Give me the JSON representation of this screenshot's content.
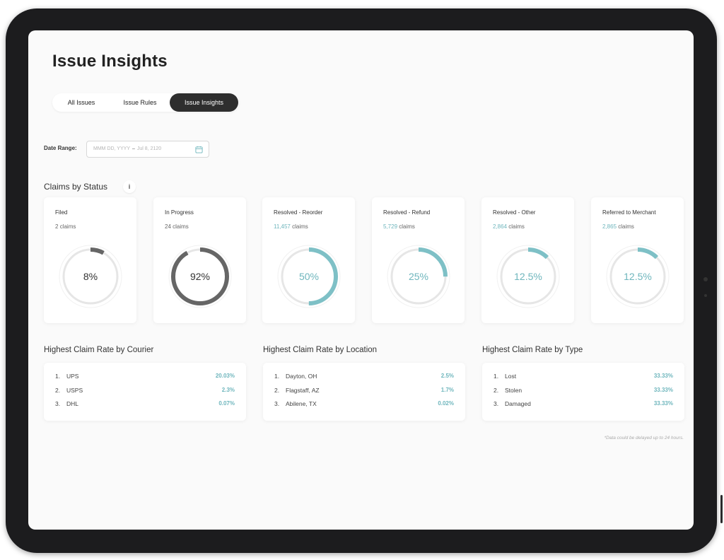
{
  "page": {
    "title": "Issue Insights"
  },
  "tabs": [
    {
      "label": "All Issues",
      "active": false
    },
    {
      "label": "Issue Rules",
      "active": false
    },
    {
      "label": "Issue Insights",
      "active": true
    }
  ],
  "date_range": {
    "label": "Date Range:",
    "start_placeholder": "MMM DD, YYYY",
    "separator": "–",
    "end_value": "Jul 8, 2120"
  },
  "claims_by_status": {
    "title": "Claims by Status",
    "info_label": "i",
    "cards": [
      {
        "title": "Filed",
        "count": "2",
        "unit": "claims",
        "percent_label": "8%",
        "fraction": 0.08,
        "color": "#666666"
      },
      {
        "title": "In Progress",
        "count": "24",
        "unit": "claims",
        "percent_label": "92%",
        "fraction": 0.92,
        "color": "#666666"
      },
      {
        "title": "Resolved - Reorder",
        "count": "11,457",
        "unit": "claims",
        "percent_label": "50%",
        "fraction": 0.5,
        "color": "#7ec0c6"
      },
      {
        "title": "Resolved - Refund",
        "count": "5,729",
        "unit": "claims",
        "percent_label": "25%",
        "fraction": 0.25,
        "color": "#7ec0c6"
      },
      {
        "title": "Resolved - Other",
        "count": "2,864",
        "unit": "claims",
        "percent_label": "12.5%",
        "fraction": 0.125,
        "color": "#7ec0c6"
      },
      {
        "title": "Referred to Merchant",
        "count": "2,865",
        "unit": "claims",
        "percent_label": "12.5%",
        "fraction": 0.125,
        "color": "#7ec0c6"
      }
    ]
  },
  "rates": [
    {
      "title": "Highest Claim Rate by Courier",
      "rows": [
        {
          "index": "1.",
          "name": "UPS",
          "value": "20.03%"
        },
        {
          "index": "2.",
          "name": "USPS",
          "value": "2.3%"
        },
        {
          "index": "3.",
          "name": "DHL",
          "value": "0.07%"
        }
      ]
    },
    {
      "title": "Highest Claim Rate by Location",
      "rows": [
        {
          "index": "1.",
          "name": "Dayton, OH",
          "value": "2.5%"
        },
        {
          "index": "2.",
          "name": "Flagstaff, AZ",
          "value": "1.7%"
        },
        {
          "index": "3.",
          "name": "Abilene, TX",
          "value": "0.02%"
        }
      ]
    },
    {
      "title": "Highest Claim Rate by Type",
      "rows": [
        {
          "index": "1.",
          "name": "Lost",
          "value": "33.33%"
        },
        {
          "index": "2.",
          "name": "Stolen",
          "value": "33.33%"
        },
        {
          "index": "3.",
          "name": "Damaged",
          "value": "33.33%"
        }
      ]
    }
  ],
  "footnote": "*Data could be delayed up to 24 hours.",
  "colors": {
    "accent": "#6fb6bd",
    "dark": "#2e2e2e",
    "ring_track": "#e6e6e6"
  },
  "icons": {
    "date": "calendar-icon",
    "info": "info-icon"
  }
}
